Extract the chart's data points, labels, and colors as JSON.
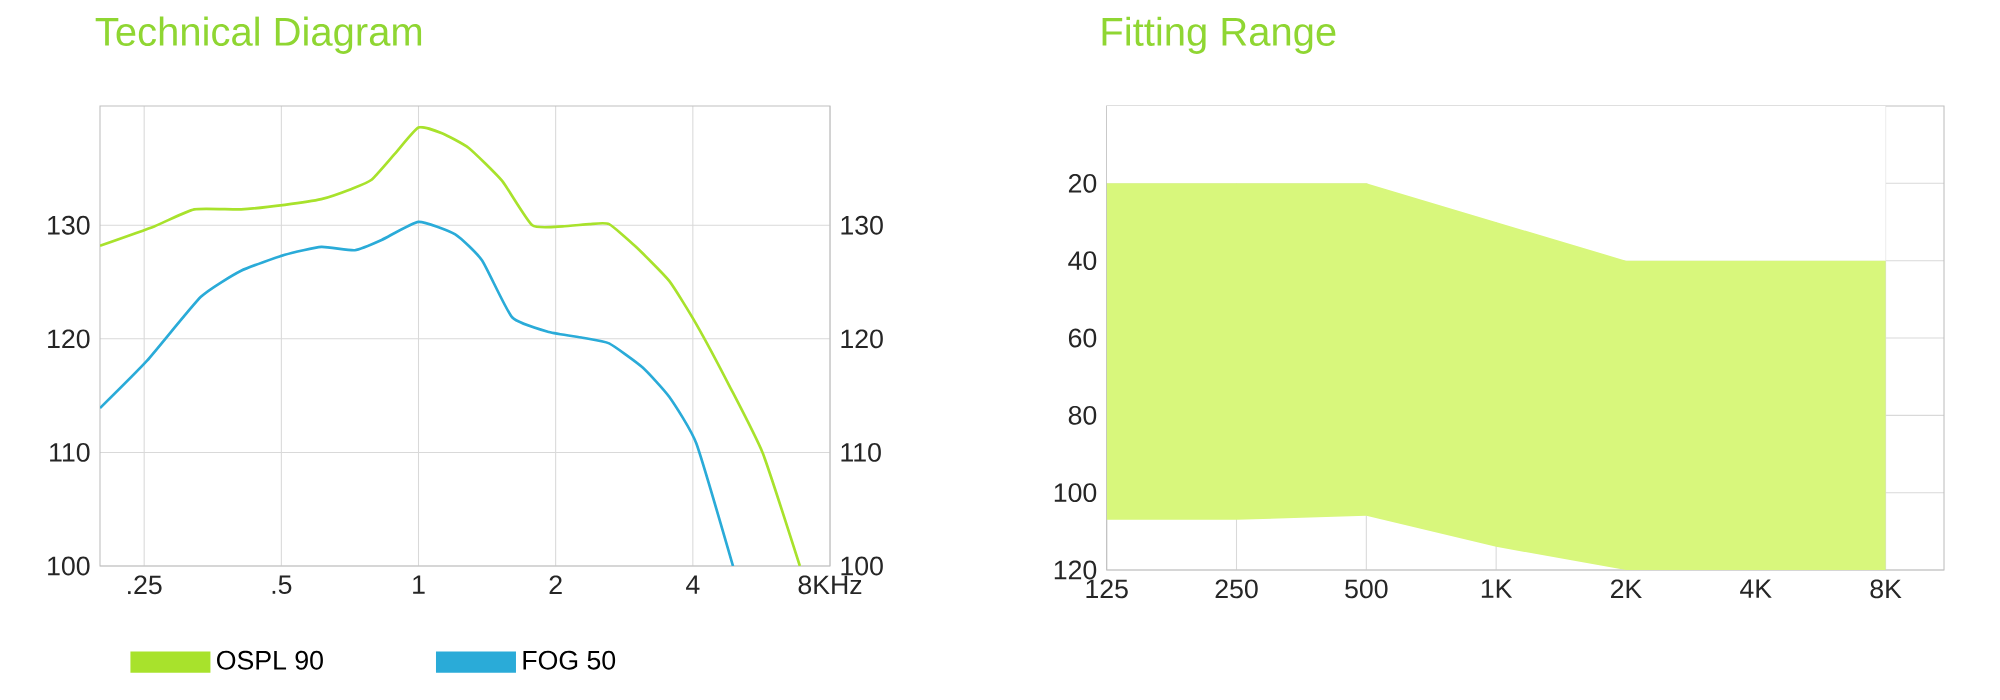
{
  "chart_data": [
    {
      "type": "line",
      "title": "Technical Diagram",
      "log": "x",
      "grid": true,
      "legend": "bottom",
      "marker": "none",
      "line_style": "solid",
      "xlim": [
        0.2,
        8
      ],
      "xticks": [
        {
          "value": 0.25,
          "label": ".25"
        },
        {
          "value": 0.5,
          "label": ".5"
        },
        1,
        2,
        4,
        {
          "value": 8,
          "label": "8KHz"
        }
      ],
      "ylim": [
        100,
        140.5
      ],
      "yticks": [
        100,
        110,
        120,
        130
      ],
      "y2lim": [
        100,
        140.5
      ],
      "y2ticks": [
        100,
        110,
        120,
        130
      ],
      "series": [
        {
          "name": "OSPL 90",
          "color": "#a8e22c",
          "x": [
            0.2,
            0.263,
            0.322,
            0.408,
            0.509,
            0.612,
            0.713,
            0.789,
            0.888,
            1.0,
            1.126,
            1.289,
            1.526,
            1.777,
            2.07,
            2.37,
            2.62,
            3.0,
            3.55,
            4.07,
            4.82,
            5.7,
            6.87
          ],
          "values": [
            128.2,
            129.9,
            131.4,
            131.4,
            131.8,
            132.3,
            133.2,
            134.0,
            136.3,
            138.6,
            138.1,
            136.8,
            133.9,
            130.0,
            129.9,
            130.1,
            130.1,
            128.1,
            125.1,
            121.3,
            115.8,
            109.9,
            100
          ]
        },
        {
          "name": "FOG 50",
          "color": "#2aabd8",
          "x": [
            0.2,
            0.254,
            0.333,
            0.408,
            0.509,
            0.612,
            0.725,
            0.83,
            1.0,
            1.204,
            1.379,
            1.605,
            1.933,
            2.29,
            2.62,
            3.1,
            3.55,
            4.07,
            4.9
          ],
          "values": [
            113.9,
            118.1,
            123.7,
            126.0,
            127.4,
            128.1,
            127.8,
            128.7,
            130.3,
            129.2,
            126.9,
            121.9,
            120.6,
            120.1,
            119.6,
            117.5,
            114.9,
            110.8,
            100
          ]
        }
      ]
    },
    {
      "type": "area",
      "title": "Fitting Range",
      "grid": true,
      "categories": [
        "125",
        "250",
        "500",
        "1K",
        "2K",
        "4K",
        "8K"
      ],
      "stacked": true,
      "ylim": [
        120,
        0
      ],
      "yticks": [
        20,
        40,
        60,
        80,
        100,
        120
      ],
      "series": [
        {
          "color": "#ffffff",
          "values": [
            20,
            20,
            20,
            30,
            40,
            40,
            40
          ]
        },
        {
          "color": "#d8f77c",
          "values": [
            87,
            87,
            86,
            84,
            80,
            80,
            80
          ]
        }
      ]
    }
  ]
}
